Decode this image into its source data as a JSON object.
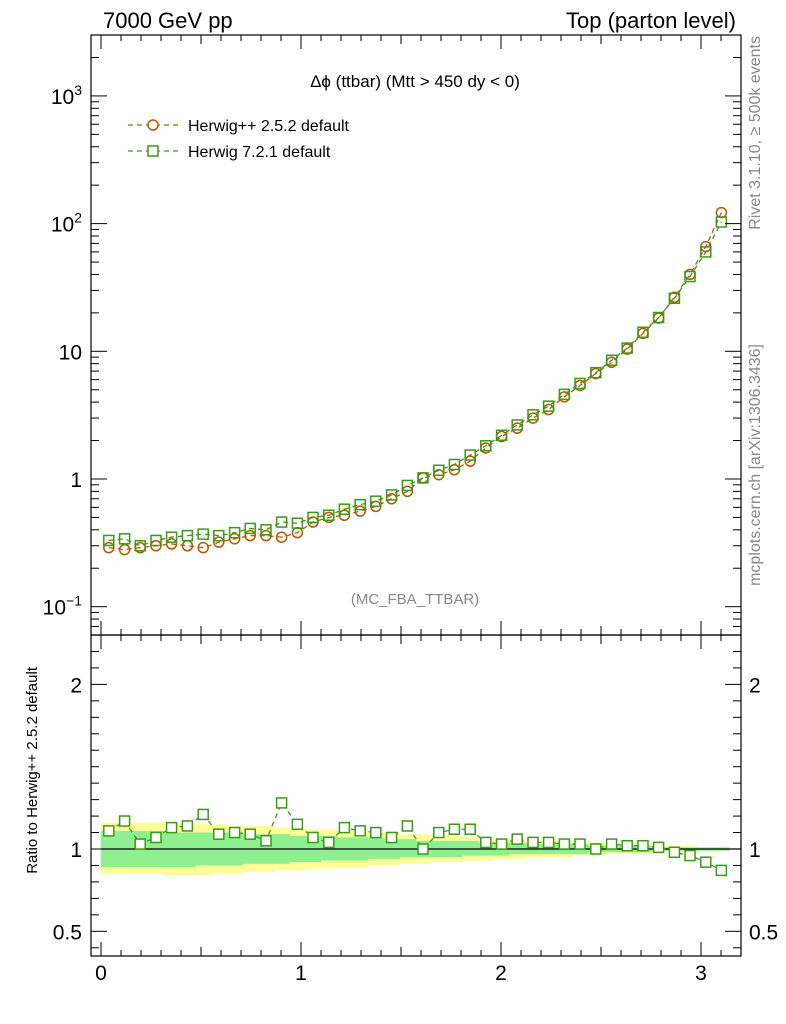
{
  "header": {
    "left": "7000 GeV pp",
    "right": "Top (parton level)"
  },
  "side_text": {
    "upper": "Rivet 3.1.10, ≥ 500k events",
    "lower": "mcplots.cern.ch [arXiv:1306.3436]"
  },
  "chart_data": {
    "type": "line",
    "title": "Δϕ (ttbar) (Mtt > 450 dy < 0)",
    "watermark": "(MC_FBA_TTBAR)",
    "ratio_ylabel": "Ratio to Herwig++ 2.5.2 default",
    "xlim": [
      -0.05,
      3.2
    ],
    "x_ticks": [
      0,
      1,
      2,
      3
    ],
    "main_ylim": [
      0.06,
      3000
    ],
    "main_yscale": "log",
    "main_y_ticks": [
      {
        "value": 0.1,
        "base": "10",
        "exp": "−1"
      },
      {
        "value": 1,
        "base": "1",
        "exp": ""
      },
      {
        "value": 10,
        "base": "10",
        "exp": ""
      },
      {
        "value": 100,
        "base": "10",
        "exp": "2"
      },
      {
        "value": 1000,
        "base": "10",
        "exp": "3"
      }
    ],
    "ratio_ylim": [
      0.35,
      2.3
    ],
    "ratio_y_ticks": [
      0.5,
      1,
      2
    ],
    "x": [
      0.039,
      0.118,
      0.196,
      0.275,
      0.353,
      0.432,
      0.511,
      0.589,
      0.668,
      0.746,
      0.825,
      0.903,
      0.982,
      1.06,
      1.139,
      1.217,
      1.296,
      1.374,
      1.453,
      1.532,
      1.61,
      1.689,
      1.767,
      1.846,
      1.924,
      2.003,
      2.081,
      2.16,
      2.238,
      2.317,
      2.395,
      2.474,
      2.553,
      2.631,
      2.71,
      2.788,
      2.867,
      2.945,
      3.024,
      3.102
    ],
    "series": [
      {
        "name": "Herwig++ 2.5.2 default",
        "color": "#b35900",
        "marker": "circle",
        "values": [
          0.29,
          0.28,
          0.29,
          0.3,
          0.31,
          0.3,
          0.29,
          0.32,
          0.34,
          0.36,
          0.36,
          0.35,
          0.38,
          0.46,
          0.5,
          0.52,
          0.56,
          0.61,
          0.7,
          0.8,
          1.02,
          1.08,
          1.18,
          1.38,
          1.75,
          2.15,
          2.5,
          3.0,
          3.5,
          4.4,
          5.4,
          6.7,
          8.2,
          10.4,
          13.8,
          18.2,
          26.5,
          40.0,
          66.0,
          122
        ]
      },
      {
        "name": "Herwig 7.2.1 default",
        "color": "#3a9a16",
        "marker": "square",
        "values": [
          0.33,
          0.34,
          0.3,
          0.33,
          0.35,
          0.36,
          0.37,
          0.36,
          0.38,
          0.41,
          0.4,
          0.46,
          0.45,
          0.5,
          0.52,
          0.58,
          0.63,
          0.67,
          0.75,
          0.89,
          1.02,
          1.17,
          1.3,
          1.54,
          1.82,
          2.2,
          2.65,
          3.18,
          3.72,
          4.6,
          5.6,
          6.8,
          8.5,
          10.6,
          14.1,
          18.4,
          26.0,
          38.5,
          60.0,
          103
        ]
      }
    ],
    "ratio": {
      "values": [
        1.11,
        1.17,
        1.03,
        1.07,
        1.13,
        1.14,
        1.21,
        1.09,
        1.1,
        1.09,
        1.05,
        1.28,
        1.15,
        1.07,
        1.04,
        1.13,
        1.11,
        1.1,
        1.07,
        1.14,
        1.0,
        1.1,
        1.12,
        1.12,
        1.04,
        1.03,
        1.06,
        1.04,
        1.04,
        1.03,
        1.03,
        1.0,
        1.03,
        1.02,
        1.02,
        1.01,
        0.98,
        0.96,
        0.92,
        0.87
      ],
      "green_lo": [
        0.89,
        0.89,
        0.89,
        0.89,
        0.89,
        0.89,
        0.9,
        0.9,
        0.9,
        0.91,
        0.91,
        0.91,
        0.92,
        0.92,
        0.93,
        0.93,
        0.93,
        0.94,
        0.94,
        0.95,
        0.95,
        0.95,
        0.95,
        0.96,
        0.96,
        0.96,
        0.97,
        0.97,
        0.97,
        0.97,
        0.97,
        0.98,
        0.98,
        0.98,
        0.98,
        0.99,
        0.99,
        0.99,
        0.99,
        0.99
      ],
      "green_hi": [
        1.11,
        1.11,
        1.11,
        1.11,
        1.1,
        1.1,
        1.1,
        1.1,
        1.1,
        1.09,
        1.09,
        1.09,
        1.08,
        1.08,
        1.08,
        1.07,
        1.07,
        1.07,
        1.06,
        1.06,
        1.05,
        1.05,
        1.05,
        1.05,
        1.04,
        1.04,
        1.04,
        1.03,
        1.03,
        1.03,
        1.03,
        1.02,
        1.02,
        1.02,
        1.02,
        1.01,
        1.01,
        1.01,
        1.01,
        1.01
      ],
      "yellow_lo": [
        0.85,
        0.85,
        0.85,
        0.85,
        0.84,
        0.84,
        0.84,
        0.85,
        0.85,
        0.86,
        0.86,
        0.87,
        0.87,
        0.88,
        0.88,
        0.89,
        0.89,
        0.9,
        0.9,
        0.91,
        0.91,
        0.92,
        0.92,
        0.93,
        0.93,
        0.94,
        0.94,
        0.95,
        0.95,
        0.95,
        0.96,
        0.96,
        0.97,
        0.97,
        0.97,
        0.98,
        0.98,
        0.98,
        0.99,
        0.99
      ],
      "yellow_hi": [
        1.16,
        1.16,
        1.16,
        1.16,
        1.15,
        1.15,
        1.15,
        1.15,
        1.14,
        1.14,
        1.14,
        1.13,
        1.13,
        1.12,
        1.12,
        1.11,
        1.11,
        1.1,
        1.1,
        1.09,
        1.09,
        1.08,
        1.08,
        1.07,
        1.07,
        1.06,
        1.06,
        1.05,
        1.05,
        1.05,
        1.04,
        1.04,
        1.03,
        1.03,
        1.03,
        1.02,
        1.02,
        1.02,
        1.01,
        1.01
      ],
      "band_colors": {
        "yellow": "#ffff99",
        "green": "#8ff08f"
      }
    }
  }
}
